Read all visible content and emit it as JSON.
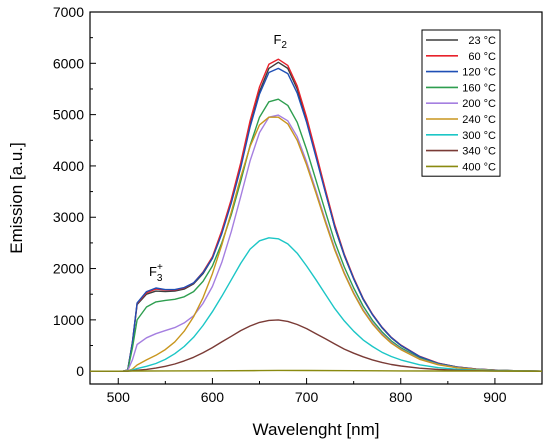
{
  "chart_data": {
    "type": "line",
    "xlabel": "Wavelenght [nm]",
    "ylabel": "Emission [a.u.]",
    "xlim": [
      470,
      950
    ],
    "ylim": [
      -250,
      7000
    ],
    "xticks": [
      500,
      600,
      700,
      800,
      900
    ],
    "yticks": [
      0,
      1000,
      2000,
      3000,
      4000,
      5000,
      6000,
      7000
    ],
    "legend_position": "top-right",
    "annotations": [
      {
        "id": "f2",
        "base": "F",
        "sub": "2",
        "sup": "",
        "x": 672,
        "y": 6380
      },
      {
        "id": "f3",
        "base": "F",
        "sub": "3",
        "sup": "+",
        "x": 540,
        "y": 1850
      }
    ],
    "series": [
      {
        "name": "23 °C",
        "color": "#3d3d3d",
        "x": [
          470,
          505,
          510,
          515,
          520,
          530,
          540,
          550,
          560,
          570,
          580,
          590,
          600,
          610,
          620,
          630,
          640,
          650,
          660,
          670,
          680,
          690,
          700,
          710,
          720,
          730,
          740,
          750,
          760,
          770,
          780,
          790,
          800,
          820,
          840,
          860,
          880,
          900,
          920,
          950
        ],
        "y": [
          0,
          0,
          20,
          550,
          1300,
          1500,
          1560,
          1550,
          1560,
          1600,
          1700,
          1900,
          2200,
          2700,
          3300,
          4000,
          4800,
          5450,
          5900,
          6020,
          5900,
          5500,
          4900,
          4200,
          3500,
          2800,
          2250,
          1800,
          1400,
          1100,
          850,
          650,
          500,
          280,
          150,
          80,
          40,
          20,
          10,
          0
        ]
      },
      {
        "name": "60 °C",
        "color": "#e8222b",
        "x": [
          470,
          505,
          510,
          515,
          520,
          530,
          540,
          550,
          560,
          570,
          580,
          590,
          600,
          610,
          620,
          630,
          640,
          650,
          660,
          670,
          680,
          690,
          700,
          710,
          720,
          730,
          740,
          750,
          760,
          770,
          780,
          790,
          800,
          820,
          840,
          860,
          880,
          900,
          920,
          950
        ],
        "y": [
          0,
          0,
          20,
          560,
          1320,
          1530,
          1600,
          1580,
          1580,
          1620,
          1720,
          1930,
          2230,
          2740,
          3350,
          4060,
          4880,
          5540,
          5980,
          6080,
          5960,
          5560,
          4950,
          4250,
          3540,
          2850,
          2280,
          1820,
          1420,
          1110,
          860,
          660,
          510,
          290,
          155,
          82,
          42,
          20,
          10,
          0
        ]
      },
      {
        "name": "120 °C",
        "color": "#1f4fb5",
        "x": [
          470,
          505,
          510,
          515,
          520,
          530,
          540,
          550,
          560,
          570,
          580,
          590,
          600,
          610,
          620,
          630,
          640,
          650,
          660,
          670,
          680,
          690,
          700,
          710,
          720,
          730,
          740,
          750,
          760,
          770,
          780,
          790,
          800,
          820,
          840,
          860,
          880,
          900,
          920,
          950
        ],
        "y": [
          0,
          0,
          20,
          560,
          1330,
          1550,
          1620,
          1590,
          1590,
          1630,
          1720,
          1920,
          2200,
          2680,
          3280,
          3960,
          4760,
          5400,
          5820,
          5900,
          5800,
          5420,
          4850,
          4170,
          3480,
          2810,
          2260,
          1800,
          1410,
          1100,
          855,
          655,
          505,
          285,
          150,
          80,
          40,
          20,
          10,
          0
        ]
      },
      {
        "name": "160 °C",
        "color": "#2e9e4f",
        "x": [
          470,
          505,
          510,
          515,
          520,
          530,
          540,
          550,
          560,
          570,
          580,
          590,
          600,
          610,
          620,
          630,
          640,
          650,
          660,
          670,
          680,
          690,
          700,
          710,
          720,
          730,
          740,
          750,
          760,
          770,
          780,
          790,
          800,
          820,
          840,
          860,
          880,
          900,
          920,
          950
        ],
        "y": [
          0,
          0,
          15,
          450,
          1000,
          1250,
          1350,
          1380,
          1400,
          1450,
          1550,
          1750,
          2050,
          2500,
          3050,
          3700,
          4400,
          4950,
          5250,
          5300,
          5180,
          4850,
          4320,
          3720,
          3110,
          2520,
          2030,
          1620,
          1270,
          990,
          770,
          590,
          455,
          255,
          135,
          72,
          36,
          18,
          9,
          0
        ]
      },
      {
        "name": "200 °C",
        "color": "#a57fe0",
        "x": [
          470,
          505,
          510,
          515,
          520,
          530,
          540,
          550,
          560,
          570,
          580,
          590,
          600,
          610,
          620,
          630,
          640,
          650,
          660,
          670,
          680,
          690,
          700,
          710,
          720,
          730,
          740,
          750,
          760,
          770,
          780,
          790,
          800,
          820,
          840,
          860,
          880,
          900,
          920,
          950
        ],
        "y": [
          0,
          0,
          10,
          220,
          520,
          650,
          730,
          790,
          850,
          940,
          1080,
          1320,
          1650,
          2120,
          2720,
          3400,
          4100,
          4650,
          4950,
          4990,
          4880,
          4570,
          4080,
          3520,
          2940,
          2390,
          1920,
          1530,
          1200,
          940,
          730,
          560,
          430,
          240,
          128,
          68,
          34,
          17,
          8,
          0
        ]
      },
      {
        "name": "240 °C",
        "color": "#c8961e",
        "x": [
          470,
          505,
          510,
          515,
          520,
          530,
          540,
          550,
          560,
          570,
          580,
          590,
          600,
          610,
          620,
          630,
          640,
          650,
          660,
          670,
          680,
          690,
          700,
          710,
          720,
          730,
          740,
          750,
          760,
          770,
          780,
          790,
          800,
          820,
          840,
          860,
          880,
          900,
          920,
          950
        ],
        "y": [
          0,
          0,
          5,
          40,
          120,
          220,
          310,
          420,
          570,
          780,
          1060,
          1430,
          1900,
          2460,
          3100,
          3780,
          4380,
          4800,
          4950,
          4950,
          4820,
          4500,
          4020,
          3470,
          2900,
          2360,
          1900,
          1510,
          1180,
          920,
          710,
          545,
          420,
          232,
          124,
          65,
          32,
          16,
          8,
          0
        ]
      },
      {
        "name": "300 °C",
        "color": "#1cc6c6",
        "x": [
          470,
          505,
          510,
          515,
          520,
          530,
          540,
          550,
          560,
          570,
          580,
          590,
          600,
          610,
          620,
          630,
          640,
          650,
          660,
          670,
          680,
          690,
          700,
          710,
          720,
          730,
          740,
          750,
          760,
          770,
          780,
          790,
          800,
          820,
          840,
          860,
          880,
          900,
          920,
          950
        ],
        "y": [
          0,
          0,
          0,
          20,
          50,
          95,
          150,
          230,
          340,
          480,
          660,
          890,
          1160,
          1460,
          1780,
          2100,
          2380,
          2540,
          2600,
          2580,
          2480,
          2300,
          2050,
          1780,
          1500,
          1220,
          980,
          780,
          610,
          480,
          370,
          285,
          220,
          125,
          68,
          36,
          18,
          9,
          4,
          0
        ]
      },
      {
        "name": "340 °C",
        "color": "#7a3b36",
        "x": [
          470,
          505,
          510,
          515,
          520,
          530,
          540,
          550,
          560,
          570,
          580,
          590,
          600,
          610,
          620,
          630,
          640,
          650,
          660,
          670,
          680,
          690,
          700,
          710,
          720,
          730,
          740,
          750,
          760,
          770,
          780,
          790,
          800,
          820,
          840,
          860,
          880,
          900,
          920,
          950
        ],
        "y": [
          0,
          0,
          0,
          8,
          18,
          35,
          60,
          95,
          140,
          200,
          270,
          360,
          460,
          570,
          680,
          790,
          880,
          950,
          990,
          1000,
          970,
          910,
          830,
          730,
          630,
          530,
          430,
          350,
          280,
          220,
          170,
          130,
          100,
          58,
          32,
          17,
          9,
          4,
          2,
          0
        ]
      },
      {
        "name": "400 °C",
        "color": "#8a8a10",
        "x": [
          470,
          500,
          520,
          550,
          600,
          650,
          670,
          700,
          750,
          800,
          850,
          900,
          950
        ],
        "y": [
          0,
          0,
          3,
          5,
          8,
          12,
          15,
          13,
          10,
          6,
          3,
          1,
          0
        ]
      }
    ]
  }
}
